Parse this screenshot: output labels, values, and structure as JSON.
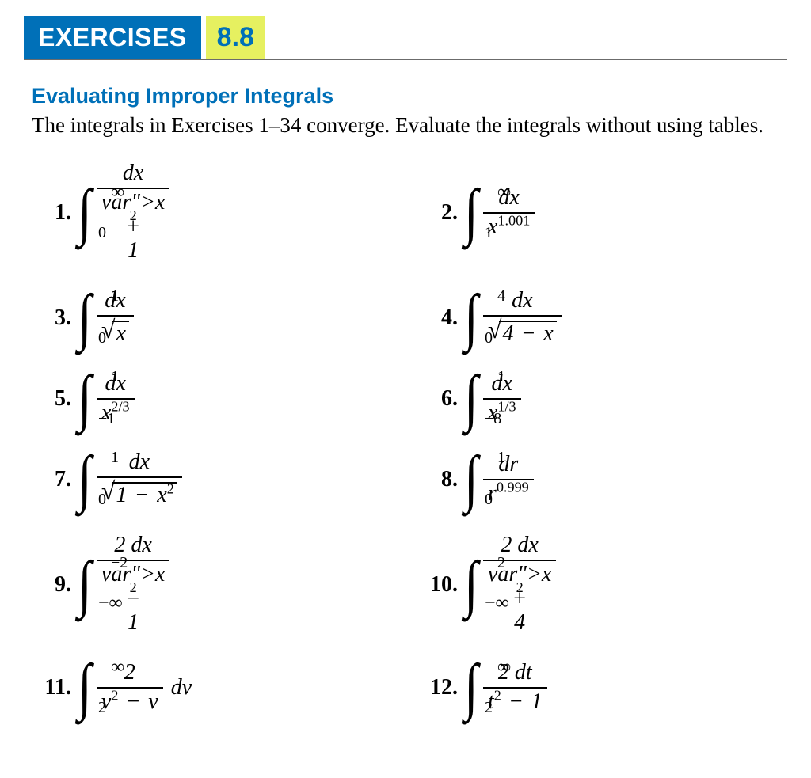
{
  "header": {
    "label": "EXERCISES",
    "section_number": "8.8",
    "bg_color": "#0070b8",
    "label_color": "#ffffff",
    "section_bg": "#e6f060",
    "section_color": "#0070b8"
  },
  "section": {
    "title": "Evaluating Improper Integrals",
    "description": "The integrals in Exercises 1–34 converge. Evaluate the integrals without using tables.",
    "title_color": "#0070b8"
  },
  "exercises": [
    {
      "n": "1.",
      "lower": "0",
      "upper": "∞",
      "num": "dx",
      "den_type": "poly",
      "den": "x² + 1"
    },
    {
      "n": "2.",
      "lower": "1",
      "upper": "∞",
      "num": "dx",
      "den_type": "power",
      "den_base": "x",
      "den_exp": "1.001"
    },
    {
      "n": "3.",
      "lower": "0",
      "upper": "1",
      "num": "dx",
      "den_type": "sqrt",
      "den_rad": "x"
    },
    {
      "n": "4.",
      "lower": "0",
      "upper": "4",
      "num": "dx",
      "den_type": "sqrt",
      "den_rad": "4 − x"
    },
    {
      "n": "5.",
      "lower": "−1",
      "upper": "1",
      "num": "dx",
      "den_type": "power",
      "den_base": "x",
      "den_exp": "2/3"
    },
    {
      "n": "6.",
      "lower": "−8",
      "upper": "1",
      "num": "dx",
      "den_type": "power",
      "den_base": "x",
      "den_exp": "1/3"
    },
    {
      "n": "7.",
      "lower": "0",
      "upper": "1",
      "num": "dx",
      "den_type": "sqrt",
      "den_rad": "1 − x²"
    },
    {
      "n": "8.",
      "lower": "0",
      "upper": "1",
      "num": "dr",
      "den_type": "power",
      "den_base": "r",
      "den_exp": "0.999"
    },
    {
      "n": "9.",
      "lower": "−∞",
      "upper": "−2",
      "num": "2 dx",
      "den_type": "poly",
      "den": "x² − 1"
    },
    {
      "n": "10.",
      "lower": "−∞",
      "upper": "2",
      "num": "2 dx",
      "den_type": "poly",
      "den": "x² + 4"
    },
    {
      "n": "11.",
      "lower": "2",
      "upper": "∞",
      "num": "2",
      "den_type": "poly",
      "den": "v² − v",
      "tail": "dv"
    },
    {
      "n": "12.",
      "lower": "2",
      "upper": "∞",
      "num": "2 dt",
      "den_type": "poly",
      "den": "t² − 1"
    }
  ]
}
